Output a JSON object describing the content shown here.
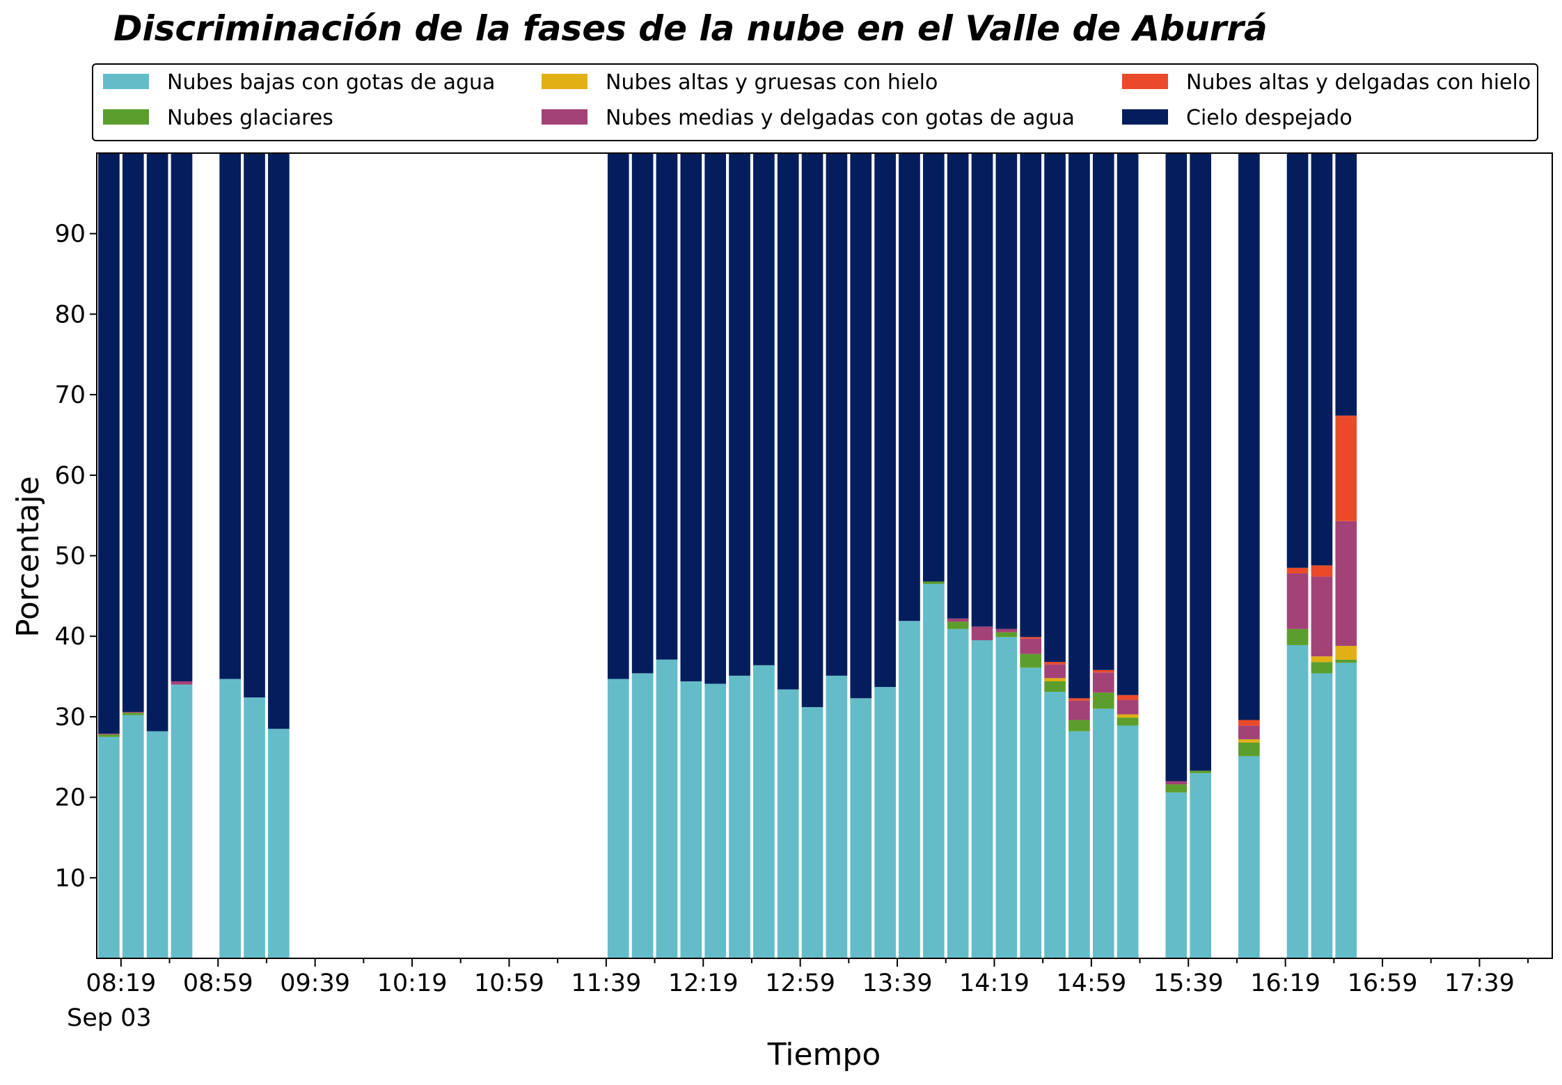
{
  "chart_data": {
    "type": "bar",
    "stacked": true,
    "title": "Discriminación de la fases de la nube en el Valle de Aburrá",
    "xlabel": "Tiempo",
    "ylabel": "Porcentaje",
    "ylim": [
      0,
      100
    ],
    "y_ticks": [
      10,
      20,
      30,
      40,
      50,
      60,
      70,
      80,
      90
    ],
    "x_tick_labels": [
      "08:19",
      "08:59",
      "09:39",
      "10:19",
      "10:59",
      "11:39",
      "12:19",
      "12:59",
      "13:39",
      "14:19",
      "14:59",
      "15:39",
      "16:19",
      "16:59",
      "17:39"
    ],
    "x_date_label": "Sep 03",
    "x_range": [
      "08:09",
      "18:09"
    ],
    "bar_width_minutes": 8.8,
    "grid": false,
    "legend_position": "top",
    "series": [
      {
        "name": "Nubes bajas con gotas de agua",
        "color": "#64BCC8"
      },
      {
        "name": "Nubes glaciares",
        "color": "#5C9E2D"
      },
      {
        "name": "Nubes altas y gruesas con hielo",
        "color": "#E1B015"
      },
      {
        "name": "Nubes medias y delgadas con gotas de agua",
        "color": "#A34277"
      },
      {
        "name": "Nubes altas y delgadas con hielo",
        "color": "#EA4A2A"
      },
      {
        "name": "Cielo despejado",
        "color": "#041E5D"
      }
    ],
    "bars": [
      {
        "x": "08:14",
        "values": [
          27.5,
          0.3,
          0,
          0.1,
          0,
          72.1
        ]
      },
      {
        "x": "08:24",
        "values": [
          30.2,
          0.3,
          0,
          0.1,
          0,
          69.4
        ]
      },
      {
        "x": "08:34",
        "values": [
          28.2,
          0,
          0,
          0,
          0,
          71.8
        ]
      },
      {
        "x": "08:44",
        "values": [
          34.0,
          0,
          0,
          0.4,
          0,
          65.6
        ]
      },
      {
        "x": "09:04",
        "values": [
          34.7,
          0,
          0,
          0,
          0,
          65.3
        ]
      },
      {
        "x": "09:14",
        "values": [
          32.4,
          0,
          0,
          0,
          0,
          67.6
        ]
      },
      {
        "x": "09:24",
        "values": [
          28.5,
          0,
          0,
          0,
          0,
          71.5
        ]
      },
      {
        "x": "11:44",
        "values": [
          34.7,
          0,
          0,
          0,
          0,
          65.3
        ]
      },
      {
        "x": "11:54",
        "values": [
          35.4,
          0,
          0,
          0,
          0,
          64.6
        ]
      },
      {
        "x": "12:04",
        "values": [
          37.1,
          0,
          0,
          0,
          0,
          62.9
        ]
      },
      {
        "x": "12:14",
        "values": [
          34.4,
          0,
          0,
          0,
          0,
          65.6
        ]
      },
      {
        "x": "12:24",
        "values": [
          34.1,
          0,
          0,
          0,
          0,
          65.9
        ]
      },
      {
        "x": "12:34",
        "values": [
          35.1,
          0,
          0,
          0,
          0,
          64.9
        ]
      },
      {
        "x": "12:44",
        "values": [
          36.4,
          0,
          0,
          0,
          0,
          63.6
        ]
      },
      {
        "x": "12:54",
        "values": [
          33.4,
          0,
          0,
          0,
          0,
          66.6
        ]
      },
      {
        "x": "13:04",
        "values": [
          31.2,
          0,
          0,
          0,
          0,
          68.8
        ]
      },
      {
        "x": "13:14",
        "values": [
          35.1,
          0,
          0,
          0,
          0,
          64.9
        ]
      },
      {
        "x": "13:24",
        "values": [
          32.3,
          0,
          0,
          0,
          0,
          67.7
        ]
      },
      {
        "x": "13:34",
        "values": [
          33.7,
          0,
          0,
          0,
          0,
          66.3
        ]
      },
      {
        "x": "13:44",
        "values": [
          41.9,
          0,
          0,
          0,
          0,
          58.1
        ]
      },
      {
        "x": "13:54",
        "values": [
          46.5,
          0.3,
          0,
          0,
          0,
          53.2
        ]
      },
      {
        "x": "14:04",
        "values": [
          40.9,
          0.9,
          0,
          0.4,
          0,
          57.8
        ]
      },
      {
        "x": "14:14",
        "values": [
          39.5,
          0,
          0,
          1.7,
          0,
          58.8
        ]
      },
      {
        "x": "14:24",
        "values": [
          39.9,
          0.6,
          0,
          0.4,
          0,
          59.1
        ]
      },
      {
        "x": "14:34",
        "values": [
          36.1,
          1.7,
          0,
          1.9,
          0.2,
          60.1
        ]
      },
      {
        "x": "14:44",
        "values": [
          33.1,
          1.3,
          0.4,
          1.7,
          0.3,
          63.2
        ]
      },
      {
        "x": "14:54",
        "values": [
          28.2,
          1.4,
          0,
          2.4,
          0.3,
          67.7
        ]
      },
      {
        "x": "15:04",
        "values": [
          31.0,
          2.0,
          0,
          2.5,
          0.3,
          64.2
        ]
      },
      {
        "x": "15:14",
        "values": [
          28.9,
          1.0,
          0.4,
          1.8,
          0.6,
          67.3
        ]
      },
      {
        "x": "15:34",
        "values": [
          20.6,
          1.0,
          0,
          0.4,
          0,
          78.0
        ]
      },
      {
        "x": "15:44",
        "values": [
          23.0,
          0.3,
          0,
          0,
          0,
          76.7
        ]
      },
      {
        "x": "16:04",
        "values": [
          25.1,
          1.7,
          0.4,
          1.7,
          0.7,
          70.4
        ]
      },
      {
        "x": "16:24",
        "values": [
          38.9,
          2.0,
          0,
          6.9,
          0.7,
          51.5
        ]
      },
      {
        "x": "16:34",
        "values": [
          35.4,
          1.4,
          0.7,
          9.9,
          1.4,
          51.2
        ]
      },
      {
        "x": "16:44",
        "values": [
          36.7,
          0.4,
          1.7,
          15.5,
          13.1,
          32.6
        ]
      }
    ]
  }
}
